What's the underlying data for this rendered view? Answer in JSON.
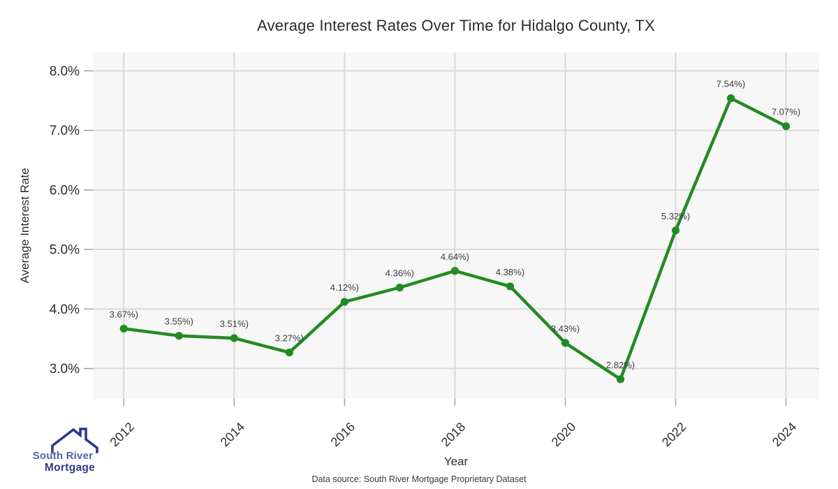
{
  "chart_data": {
    "type": "line",
    "title": "Average Interest Rates Over Time for Hidalgo County, TX",
    "xlabel": "Year",
    "ylabel": "Average Interest Rate",
    "x": [
      2012,
      2013,
      2014,
      2015,
      2016,
      2017,
      2018,
      2019,
      2020,
      2021,
      2022,
      2023,
      2024
    ],
    "series": [
      {
        "name": "Average Interest Rate",
        "values": [
          3.67,
          3.55,
          3.51,
          3.27,
          4.12,
          4.36,
          4.64,
          4.38,
          3.43,
          2.82,
          5.32,
          7.54,
          7.07
        ]
      }
    ],
    "point_labels": [
      "3.67%)",
      "3.55%)",
      "3.51%)",
      "3.27%)",
      "4.12%)",
      "4.36%)",
      "4.64%)",
      "4.38%)",
      "3.43%)",
      "2.82%)",
      "5.32%)",
      "7.54%)",
      "7.07%)"
    ],
    "x_ticks": {
      "values": [
        2012,
        2014,
        2016,
        2018,
        2020,
        2022,
        2024
      ],
      "labels": [
        "2012",
        "2014",
        "2016",
        "2018",
        "2020",
        "2022",
        "2024"
      ]
    },
    "y_ticks": {
      "values": [
        3,
        4,
        5,
        6,
        7,
        8
      ],
      "labels": [
        "3.0%",
        "4.0%",
        "5.0%",
        "6.0%",
        "7.0%",
        "8.0%"
      ]
    },
    "xlim": [
      2011.44,
      2024.6
    ],
    "ylim": [
      2.49,
      8.31
    ],
    "grid": true,
    "legend_position": "none",
    "line_color": "#228B22",
    "marker_color": "#228B22",
    "panel_bg": "#f7f7f7",
    "grid_color": "#d7d7d7",
    "tick_color": "#9a9a9a",
    "tick_label_color": "#2e2e2e",
    "point_label_color": "#3d3d3d"
  },
  "footer": {
    "caption": "Data source: South River Mortgage Proprietary Dataset"
  },
  "logo": {
    "line1": "South River",
    "line2": "Mortgage",
    "color1": "#4f62aa",
    "color2": "#2d3a8d",
    "icon_color": "#2b3990"
  }
}
